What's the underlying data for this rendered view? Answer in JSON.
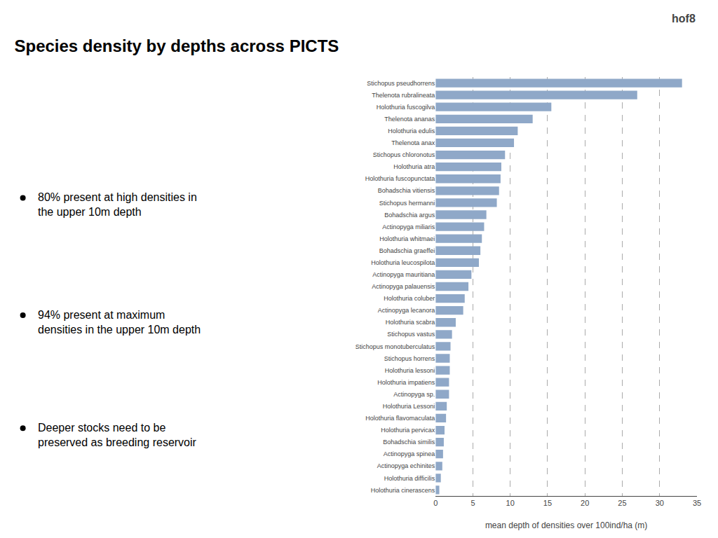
{
  "chart_data": {
    "type": "bar",
    "orientation": "horizontal",
    "title": "Species density by depths across PICTS",
    "x_label": "mean depth of densities over 100ind/ha (m)",
    "categories": [
      "Stichopus pseudhorrens",
      "Thelenota rubralineata",
      "Holothuria fuscogilva",
      "Thelenota ananas",
      "Holothuria edulis",
      "Thelenota anax",
      "Stichopus chloronotus",
      "Holothuria atra",
      "Holothuria fuscopunctata",
      "Bohadschia vitiensis",
      "Stichopus hermanni",
      "Bohadschia argus",
      "Actinopyga miliaris",
      "Holothuria whitmaei",
      "Bohadschia graeffei",
      "Holothuria leucospilota",
      "Actinopyga mauritiana",
      "Actinopyga palauensis",
      "Holothuria coluber",
      "Actinopyga lecanora",
      "Holothuria scabra",
      "Stichopus vastus",
      "Stichopus monotuberculatus",
      "Stichopus horrens",
      "Holothuria lessoni",
      "Holothuria impatiens",
      "Actinopyga sp.",
      "Holothuria Lessoni",
      "Holothuria flavomaculata",
      "Holothuria pervicax",
      "Bohadschia similis",
      "Actinopyga spinea",
      "Actinopyga echinites",
      "Holothuria difficilis",
      "Holothuria cinerascens"
    ],
    "values": [
      33.0,
      27.0,
      15.5,
      13.0,
      11.0,
      10.5,
      9.3,
      8.8,
      8.7,
      8.5,
      8.2,
      6.8,
      6.5,
      6.2,
      6.0,
      5.8,
      4.8,
      4.4,
      3.9,
      3.7,
      2.7,
      2.2,
      2.0,
      1.9,
      1.9,
      1.8,
      1.8,
      1.5,
      1.4,
      1.2,
      1.1,
      1.0,
      0.9,
      0.7,
      0.5
    ],
    "color": "#8FA8C8",
    "xlim": [
      0,
      35
    ],
    "xticks": [
      0,
      5,
      10,
      15,
      20,
      25,
      30,
      35
    ],
    "grid": true,
    "annotations": [
      "80% present at high densities in\nthe upper 10m depth",
      "94% present at maximum\ndensities in the upper 10m depth",
      "Deeper stocks need to be\npreserved as breeding reservoir",
      "hof8"
    ]
  }
}
